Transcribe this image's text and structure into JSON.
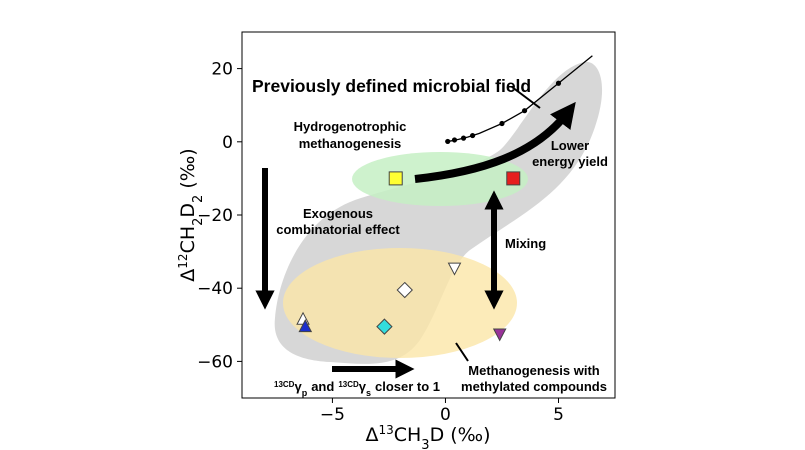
{
  "chart_data": {
    "type": "scatter",
    "xlabel": "Δ¹³CH₃D (‰)",
    "ylabel": "Δ¹²CH₂D₂ (‰)",
    "xlim": [
      -9,
      7.5
    ],
    "ylim": [
      -70,
      30
    ],
    "x_ticks": [
      -5,
      0,
      5
    ],
    "y_ticks": [
      20,
      0,
      -20,
      -40,
      -60
    ],
    "grid": false,
    "regions": [
      {
        "kind": "previously-defined-microbial-field",
        "color": "#d5d5d5"
      },
      {
        "kind": "hydrogenotrophic-ellipse",
        "color": "#c8f0c8",
        "center": [
          0,
          -10
        ],
        "radius": [
          4,
          3.5
        ]
      },
      {
        "kind": "methylated-ellipse",
        "color": "#fbe6a8",
        "center": [
          -1.8,
          -43.5
        ],
        "radius": [
          7.2,
          11.8
        ]
      }
    ],
    "equilibrium_curve": [
      [
        0,
        0
      ],
      [
        0.3,
        0.3
      ],
      [
        0.6,
        0.7
      ],
      [
        1,
        1.3
      ],
      [
        1.5,
        2.3
      ],
      [
        2.5,
        5
      ],
      [
        3.5,
        8.5
      ],
      [
        5,
        16
      ],
      [
        6.5,
        23.5
      ]
    ],
    "equilibrium_points": [
      [
        0.1,
        0.1
      ],
      [
        0.4,
        0.5
      ],
      [
        0.8,
        1.0
      ],
      [
        1.2,
        1.7
      ],
      [
        2.5,
        5
      ],
      [
        3.5,
        8.5
      ],
      [
        5,
        16
      ]
    ],
    "markers": [
      {
        "x": -2.2,
        "y": -10,
        "shape": "square",
        "color": "#ffff33"
      },
      {
        "x": 3.0,
        "y": -10,
        "shape": "square",
        "color": "#e61e1e"
      },
      {
        "x": 0.4,
        "y": -34.5,
        "shape": "triangle-down",
        "color": "#ffffff"
      },
      {
        "x": -1.8,
        "y": -40.5,
        "shape": "diamond",
        "color": "#ffffff"
      },
      {
        "x": -6.3,
        "y": -48.5,
        "shape": "triangle-up",
        "color": "#ffffff"
      },
      {
        "x": -6.2,
        "y": -50.5,
        "shape": "triangle-up",
        "color": "#1a2ecc"
      },
      {
        "x": -2.7,
        "y": -50.5,
        "shape": "diamond",
        "color": "#33dddd"
      },
      {
        "x": 2.4,
        "y": -52.5,
        "shape": "triangle-down",
        "color": "#993399"
      }
    ],
    "annotations": {
      "microbial_field": "Previously defined microbial field",
      "hydro_line1": "Hydrogenotrophic",
      "hydro_line2": "methanogenesis",
      "lower_line1": "Lower",
      "lower_line2": "energy yield",
      "exo_line1": "Exogenous",
      "exo_line2": "combinatorial effect",
      "mixing": "Mixing",
      "meth_line1": "Methanogenesis with",
      "meth_line2": "methylated compounds",
      "gamma_sup": "13CD",
      "gamma_letter": "γ",
      "gamma_sub_p": "p",
      "gamma_sub_s": "s",
      "gamma_and": "and",
      "gamma_closer": "closer to 1"
    }
  }
}
